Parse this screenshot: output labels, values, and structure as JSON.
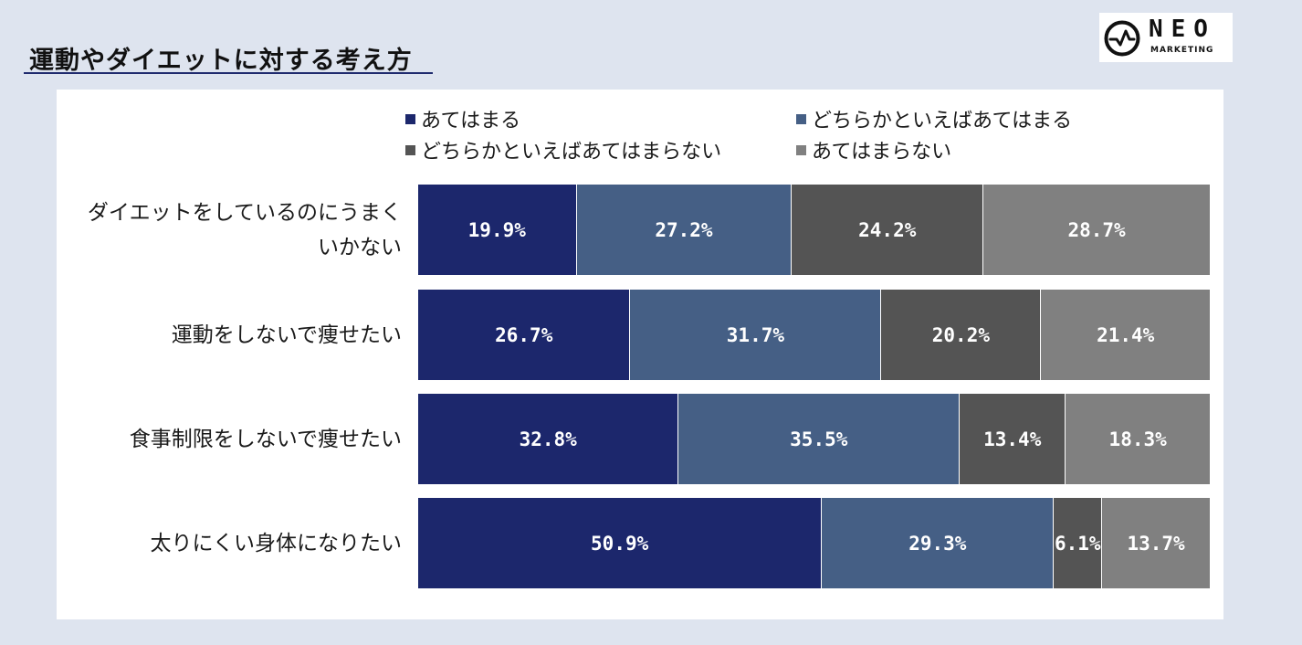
{
  "page": {
    "title": "運動やダイエットに対する考え方",
    "logo": {
      "word": "NEO",
      "sub": "MARKETING",
      "icon": "pulse-circle-icon"
    }
  },
  "chart_data": {
    "type": "bar",
    "orientation": "horizontal",
    "stacked": "percent",
    "categories": [
      "ダイエットをしているのにうまくいかない",
      "運動をしないで痩せたい",
      "食事制限をしないで痩せたい",
      "太りにくい身体になりたい"
    ],
    "category_lines": [
      [
        "ダイエットをしているのにうまく",
        "いかない"
      ],
      [
        "運動をしないで痩せたい"
      ],
      [
        "食事制限をしないで痩せたい"
      ],
      [
        "太りにくい身体になりたい"
      ]
    ],
    "series": [
      {
        "name": "あてはまる",
        "color": "#1c276c",
        "values": [
          19.9,
          26.7,
          32.8,
          50.9
        ],
        "labels": [
          "19.9%",
          "26.7%",
          "32.8%",
          "50.9%"
        ]
      },
      {
        "name": "どちらかといえばあてはまる",
        "color": "#455f85",
        "values": [
          27.2,
          31.7,
          35.5,
          29.3
        ],
        "labels": [
          "27.2%",
          "31.7%",
          "35.5%",
          "29.3%"
        ]
      },
      {
        "name": "どちらかといえばあてはまらない",
        "color": "#545454",
        "values": [
          24.2,
          20.2,
          13.4,
          6.1
        ],
        "labels": [
          "24.2%",
          "20.2%",
          "13.4%",
          "6.1%"
        ]
      },
      {
        "name": "あてはまらない",
        "color": "#808080",
        "values": [
          28.7,
          21.4,
          18.3,
          13.7
        ],
        "labels": [
          "28.7%",
          "21.4%",
          "18.3%",
          "13.7%"
        ]
      }
    ],
    "xlim": [
      0,
      100
    ],
    "legend_position": "top",
    "grid": false
  }
}
